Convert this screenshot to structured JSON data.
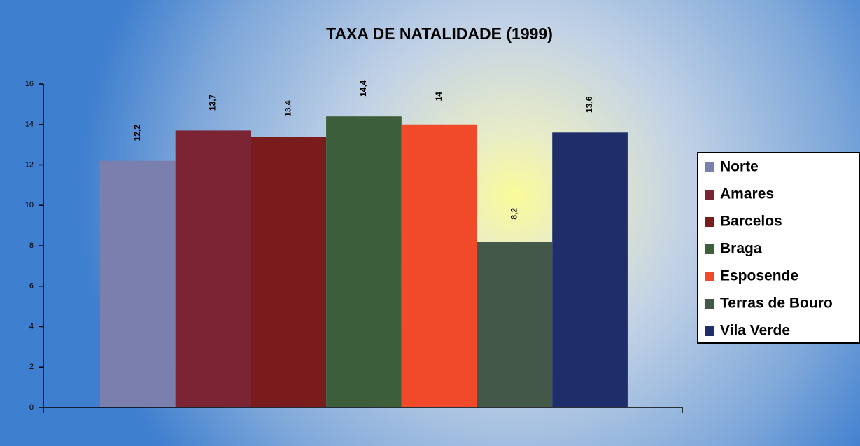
{
  "chart_data": {
    "type": "bar",
    "title": "TAXA DE NATALIDADE (1999)",
    "series": [
      {
        "name": "Norte",
        "color": "#7b7fae",
        "values": [
          12.2
        ],
        "value_labels": [
          "12,2"
        ]
      },
      {
        "name": "Amares",
        "color": "#7a2434",
        "values": [
          13.7
        ],
        "value_labels": [
          "13,7"
        ]
      },
      {
        "name": "Barcelos",
        "color": "#7a1c1c",
        "values": [
          13.4
        ],
        "value_labels": [
          "13,4"
        ]
      },
      {
        "name": "Braga",
        "color": "#3d5e3a",
        "values": [
          14.4
        ],
        "value_labels": [
          "14,4"
        ]
      },
      {
        "name": "Esposende",
        "color": "#f04a2a",
        "values": [
          14
        ],
        "value_labels": [
          "14"
        ]
      },
      {
        "name": "Terras de Bouro",
        "color": "#44584a",
        "values": [
          8.2
        ],
        "value_labels": [
          "8,2"
        ]
      },
      {
        "name": "Vila Verde",
        "color": "#1f2d6a",
        "values": [
          13.6
        ],
        "value_labels": [
          "13,6"
        ]
      }
    ],
    "ylim": [
      0,
      16
    ],
    "yticks": [
      0,
      2,
      4,
      6,
      8,
      10,
      12,
      14,
      16
    ],
    "legend": "right"
  }
}
